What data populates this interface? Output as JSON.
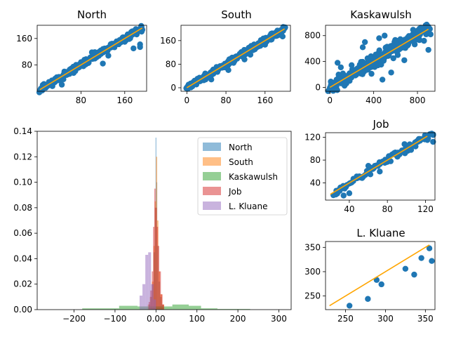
{
  "colors": {
    "points": "#1f77b4",
    "fit_line": "#ffa500",
    "north": "#1f77b4",
    "south": "#ff7f0e",
    "kaskawulsh": "#2ca02c",
    "job": "#d62728",
    "kluane": "#9467bd"
  },
  "chart_data": [
    {
      "id": "north",
      "type": "scatter",
      "title": "North",
      "xlim": [
        0,
        200
      ],
      "ylim": [
        0,
        200
      ],
      "xticks": [
        80,
        160
      ],
      "yticks": [
        80,
        160
      ],
      "fit_line": [
        [
          5,
          5
        ],
        [
          192,
          192
        ]
      ],
      "cloud": {
        "x0": 5,
        "x1": 192,
        "n": 230,
        "spread": 6.5
      },
      "points": [
        [
          120,
          84
        ],
        [
          130,
          108
        ],
        [
          188,
          142
        ],
        [
          188,
          134
        ],
        [
          176,
          130
        ],
        [
          160,
          150
        ],
        [
          45,
          20
        ],
        [
          100,
          118
        ]
      ]
    },
    {
      "id": "south",
      "type": "scatter",
      "title": "South",
      "xlim": [
        -12,
        212
      ],
      "ylim": [
        -12,
        212
      ],
      "xticks": [
        0,
        80,
        160
      ],
      "yticks": [
        0,
        80,
        160
      ],
      "fit_line": [
        [
          0,
          0
        ],
        [
          200,
          200
        ]
      ],
      "cloud": {
        "x0": 0,
        "x1": 200,
        "n": 260,
        "spread": 7
      },
      "points": [
        [
          118,
          96
        ],
        [
          130,
          112
        ],
        [
          85,
          60
        ],
        [
          160,
          146
        ],
        [
          196,
          174
        ],
        [
          50,
          28
        ]
      ]
    },
    {
      "id": "kaskawulsh",
      "type": "scatter",
      "title": "Kaskawulsh",
      "xlim": [
        -40,
        960
      ],
      "ylim": [
        -60,
        960
      ],
      "xticks": [
        0,
        400,
        800
      ],
      "yticks": [
        0,
        400,
        800
      ],
      "fit_line": [
        [
          0,
          0
        ],
        [
          900,
          900
        ]
      ],
      "cloud": {
        "x0": 0,
        "x1": 900,
        "n": 240,
        "spread": 75
      },
      "points": [
        [
          70,
          380
        ],
        [
          100,
          310
        ],
        [
          250,
          290
        ],
        [
          300,
          620
        ],
        [
          320,
          700
        ],
        [
          450,
          760
        ],
        [
          500,
          800
        ],
        [
          580,
          450
        ],
        [
          620,
          500
        ],
        [
          480,
          120
        ],
        [
          380,
          210
        ],
        [
          560,
          230
        ],
        [
          820,
          880
        ],
        [
          860,
          720
        ],
        [
          900,
          580
        ],
        [
          920,
          820
        ],
        [
          760,
          890
        ],
        [
          150,
          60
        ],
        [
          680,
          420
        ]
      ]
    },
    {
      "id": "histogram",
      "type": "bar",
      "title": "",
      "xlim": [
        -290,
        330
      ],
      "ylim": [
        0,
        0.14
      ],
      "xticks": [
        -200,
        -100,
        0,
        100,
        200,
        300
      ],
      "yticks": [
        0.0,
        0.02,
        0.04,
        0.06,
        0.08,
        0.1,
        0.12,
        0.14
      ],
      "legend_position": "upper right",
      "series": [
        {
          "name": "North",
          "color": "#1f77b4",
          "bins": [
            [
              -18,
              4,
              0.004
            ],
            [
              -14,
              4,
              0.01
            ],
            [
              -10,
              4,
              0.02
            ],
            [
              -6,
              4,
              0.045
            ],
            [
              -3,
              3,
              0.08
            ],
            [
              -1,
              2,
              0.135
            ],
            [
              1,
              2,
              0.1
            ],
            [
              3,
              3,
              0.05
            ],
            [
              6,
              4,
              0.022
            ],
            [
              10,
              4,
              0.01
            ],
            [
              14,
              4,
              0.004
            ]
          ]
        },
        {
          "name": "South",
          "color": "#ff7f0e",
          "bins": [
            [
              -20,
              5,
              0.004
            ],
            [
              -15,
              5,
              0.01
            ],
            [
              -10,
              4,
              0.022
            ],
            [
              -6,
              3,
              0.05
            ],
            [
              -3,
              3,
              0.085
            ],
            [
              0,
              3,
              0.12
            ],
            [
              3,
              3,
              0.07
            ],
            [
              6,
              4,
              0.03
            ],
            [
              10,
              5,
              0.012
            ],
            [
              15,
              5,
              0.004
            ]
          ]
        },
        {
          "name": "Kaskawulsh",
          "color": "#2ca02c",
          "bins": [
            [
              -180,
              45,
              0.001
            ],
            [
              -135,
              45,
              0.001
            ],
            [
              -90,
              45,
              0.003
            ],
            [
              -45,
              45,
              0.0025
            ],
            [
              0,
              40,
              0.0025
            ],
            [
              40,
              40,
              0.004
            ],
            [
              80,
              30,
              0.003
            ],
            [
              110,
              40,
              0.001
            ],
            [
              150,
              80,
              0.0005
            ]
          ]
        },
        {
          "name": "Job",
          "color": "#d62728",
          "bins": [
            [
              -18,
              4,
              0.006
            ],
            [
              -14,
              4,
              0.015
            ],
            [
              -10,
              3,
              0.03
            ],
            [
              -7,
              3,
              0.065
            ],
            [
              -4,
              3,
              0.095
            ],
            [
              -1,
              3,
              0.08
            ],
            [
              2,
              3,
              0.065
            ],
            [
              5,
              3,
              0.05
            ],
            [
              8,
              4,
              0.03
            ],
            [
              12,
              4,
              0.012
            ],
            [
              16,
              4,
              0.004
            ]
          ]
        },
        {
          "name": "L. Kluane",
          "color": "#9467bd",
          "bins": [
            [
              -40,
              7,
              0.011
            ],
            [
              -33,
              7,
              0.02
            ],
            [
              -26,
              7,
              0.043
            ],
            [
              -19,
              7,
              0.045
            ],
            [
              -12,
              6,
              0.02
            ],
            [
              -6,
              6,
              0.008
            ]
          ]
        }
      ]
    },
    {
      "id": "job",
      "type": "scatter",
      "title": "Job",
      "xlim": [
        15,
        130
      ],
      "ylim": [
        10,
        128
      ],
      "xticks": [
        40,
        80,
        120
      ],
      "yticks": [
        40,
        80,
        120
      ],
      "fit_line": [
        [
          20,
          20
        ],
        [
          122,
          122
        ]
      ],
      "cloud": {
        "x0": 24,
        "x1": 128,
        "n": 85,
        "spread": 5
      },
      "points": [
        [
          34,
          18
        ],
        [
          40,
          22
        ],
        [
          60,
          70
        ],
        [
          98,
          108
        ],
        [
          128,
          112
        ],
        [
          72,
          60
        ]
      ]
    },
    {
      "id": "kluane",
      "type": "scatter",
      "title": "L. Kluane",
      "xlim": [
        225,
        362
      ],
      "ylim": [
        222,
        362
      ],
      "xticks": [
        250,
        300,
        350
      ],
      "yticks": [
        250,
        300,
        350
      ],
      "fit_line": [
        [
          230,
          230
        ],
        [
          355,
          355
        ]
      ],
      "points": [
        [
          255,
          230
        ],
        [
          278,
          244
        ],
        [
          289,
          283
        ],
        [
          295,
          274
        ],
        [
          325,
          306
        ],
        [
          336,
          294
        ],
        [
          345,
          328
        ],
        [
          355,
          348
        ],
        [
          358,
          322
        ]
      ]
    }
  ]
}
